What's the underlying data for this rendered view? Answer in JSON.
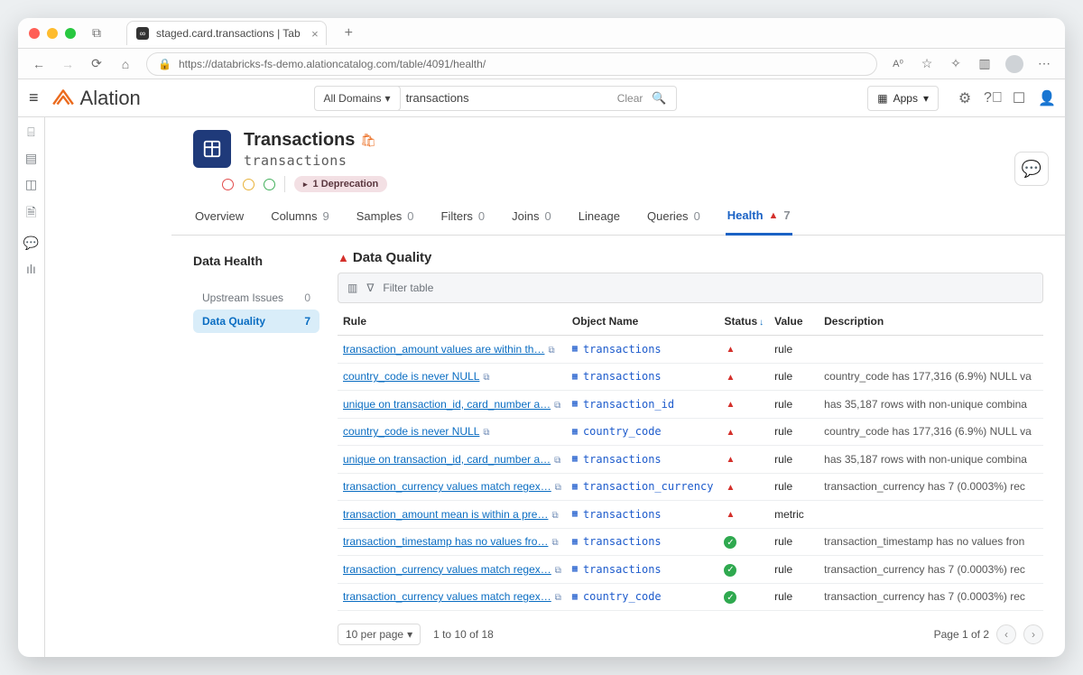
{
  "browser": {
    "tab_title": "staged.card.transactions | Tab",
    "url": "https://databricks-fs-demo.alationcatalog.com/table/4091/health/"
  },
  "app": {
    "logo_text": "Alation",
    "domain_selector": "All Domains",
    "search_value": "transactions",
    "search_clear": "Clear",
    "apps_btn": "Apps"
  },
  "page": {
    "title": "Transactions",
    "subtitle": "transactions",
    "deprecation_badge": "1 Deprecation"
  },
  "tabs": [
    {
      "label": "Overview",
      "count": ""
    },
    {
      "label": "Columns",
      "count": "9"
    },
    {
      "label": "Samples",
      "count": "0"
    },
    {
      "label": "Filters",
      "count": "0"
    },
    {
      "label": "Joins",
      "count": "0"
    },
    {
      "label": "Lineage",
      "count": ""
    },
    {
      "label": "Queries",
      "count": "0"
    },
    {
      "label": "Health",
      "count": "7",
      "active": true,
      "warn": true
    }
  ],
  "health": {
    "sidebar_title": "Data Health",
    "sidebar_items": [
      {
        "label": "Upstream Issues",
        "count": "0"
      },
      {
        "label": "Data Quality",
        "count": "7",
        "active": true
      }
    ],
    "dq_title": "Data Quality",
    "filter_placeholder": "Filter table",
    "columns": {
      "rule": "Rule",
      "object": "Object Name",
      "status": "Status",
      "value": "Value",
      "desc": "Description"
    },
    "rows": [
      {
        "rule": "transaction_amount values are within th…",
        "object": "transactions",
        "status": "alert",
        "value": "rule",
        "desc": ""
      },
      {
        "rule": "country_code is never NULL",
        "object": "transactions",
        "status": "alert",
        "value": "rule",
        "desc": "country_code has 177,316 (6.9%) NULL va"
      },
      {
        "rule": "unique on transaction_id, card_number a…",
        "object": "transaction_id",
        "status": "alert",
        "value": "rule",
        "desc": "has 35,187 rows with non-unique combina"
      },
      {
        "rule": "country_code is never NULL",
        "object": "country_code",
        "status": "alert",
        "value": "rule",
        "desc": "country_code has 177,316 (6.9%) NULL va"
      },
      {
        "rule": "unique on transaction_id, card_number a…",
        "object": "transactions",
        "status": "alert",
        "value": "rule",
        "desc": "has 35,187 rows with non-unique combina"
      },
      {
        "rule": "transaction_currency values match regex…",
        "object": "transaction_currency",
        "status": "alert",
        "value": "rule",
        "desc": "transaction_currency has 7 (0.0003%) rec"
      },
      {
        "rule": "transaction_amount mean is within a pre…",
        "object": "transactions",
        "status": "alert",
        "value": "metric",
        "desc": ""
      },
      {
        "rule": "transaction_timestamp has no values fro…",
        "object": "transactions",
        "status": "ok",
        "value": "rule",
        "desc": "transaction_timestamp has no values fron"
      },
      {
        "rule": "transaction_currency values match regex…",
        "object": "transactions",
        "status": "ok",
        "value": "rule",
        "desc": "transaction_currency has 7 (0.0003%) rec"
      },
      {
        "rule": "transaction_currency values match regex…",
        "object": "country_code",
        "status": "ok",
        "value": "rule",
        "desc": "transaction_currency has 7 (0.0003%) rec"
      }
    ],
    "pager": {
      "per_page": "10 per page",
      "range": "1 to 10 of 18",
      "page_of": "Page 1 of 2"
    }
  }
}
